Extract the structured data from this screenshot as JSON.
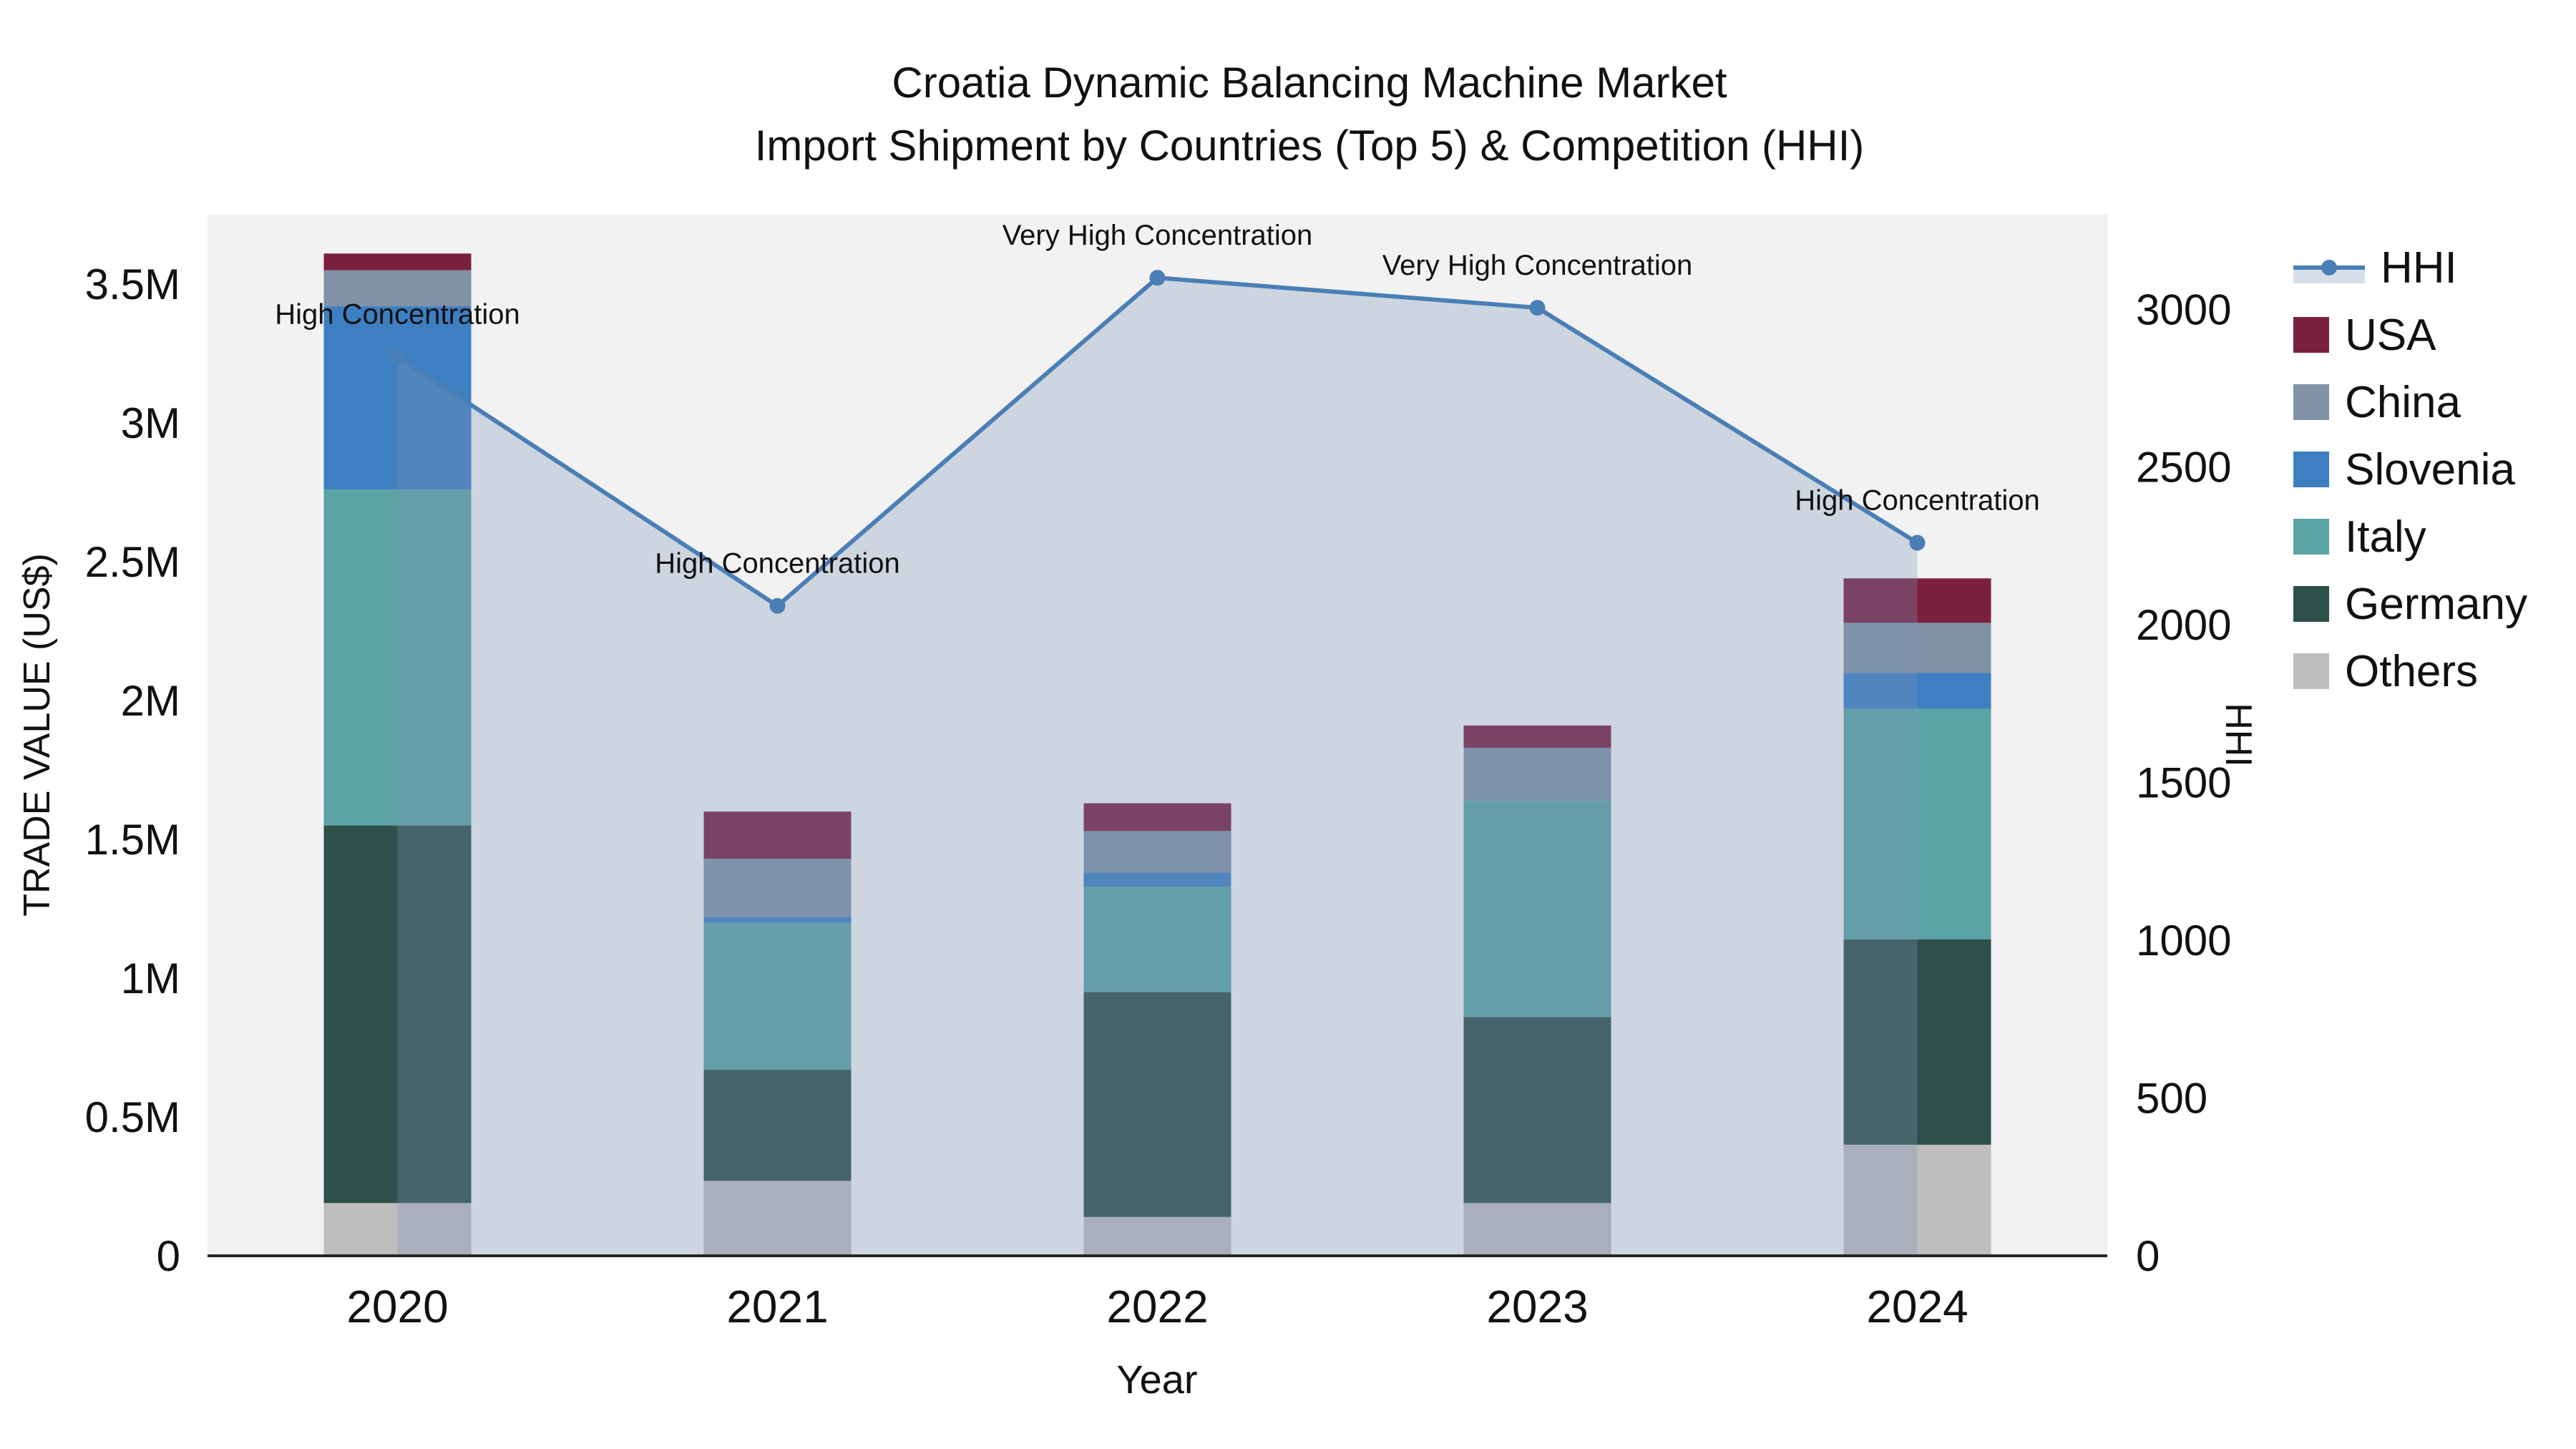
{
  "title": {
    "line1": "Croatia Dynamic Balancing Machine Market",
    "line2": "Import Shipment by Countries (Top 5) & Competition (HHI)"
  },
  "axis_labels": {
    "y_left": "TRADE VALUE (US$)",
    "y_right": "HHI",
    "x": "Year"
  },
  "legend": {
    "position": "right",
    "items": [
      {
        "label": "HHI",
        "type": "line",
        "color": "#4a7fb5"
      },
      {
        "label": "USA",
        "type": "swatch",
        "color": "#7b1f3e"
      },
      {
        "label": "China",
        "type": "swatch",
        "color": "#8192a6"
      },
      {
        "label": "Slovenia",
        "type": "swatch",
        "color": "#3d7fc1"
      },
      {
        "label": "Italy",
        "type": "swatch",
        "color": "#5ba3a4"
      },
      {
        "label": "Germany",
        "type": "swatch",
        "color": "#2e4f4a"
      },
      {
        "label": "Others",
        "type": "swatch",
        "color": "#bfbdbd"
      }
    ]
  },
  "chart_data": {
    "type": "bar",
    "subtype": "stacked-bars-with-hhi-line",
    "title": "Croatia Dynamic Balancing Machine Market Import Shipment by Countries (Top 5) & Competition (HHI)",
    "xlabel": "Year",
    "categories": [
      "2020",
      "2021",
      "2022",
      "2023",
      "2024"
    ],
    "bar_series": [
      {
        "name": "Others",
        "color": "#bfbdbd",
        "values": [
          190000,
          270000,
          140000,
          190000,
          400000
        ]
      },
      {
        "name": "Germany",
        "color": "#2e4f4a",
        "values": [
          1360000,
          400000,
          810000,
          670000,
          740000
        ]
      },
      {
        "name": "Italy",
        "color": "#5ba3a4",
        "values": [
          1210000,
          530000,
          380000,
          780000,
          830000
        ]
      },
      {
        "name": "Slovenia",
        "color": "#3d7fc1",
        "values": [
          660000,
          20000,
          50000,
          0,
          130000
        ]
      },
      {
        "name": "China",
        "color": "#8192a6",
        "values": [
          130000,
          210000,
          150000,
          190000,
          180000
        ]
      },
      {
        "name": "USA",
        "color": "#7b1f3e",
        "values": [
          60000,
          170000,
          100000,
          80000,
          160000
        ]
      }
    ],
    "bar_totals": [
      3610000,
      1600000,
      1630000,
      1910000,
      2440000
    ],
    "line_series": {
      "name": "HHI",
      "color": "#4a7fb5",
      "area_fill": "rgba(124,147,184,0.31)",
      "values": [
        2850,
        2060,
        3100,
        3005,
        2260
      ]
    },
    "annotations": [
      {
        "x": "2020",
        "text": "High Concentration"
      },
      {
        "x": "2021",
        "text": "High Concentration"
      },
      {
        "x": "2022",
        "text": "Very High Concentration"
      },
      {
        "x": "2023",
        "text": "Very High Concentration"
      },
      {
        "x": "2024",
        "text": "High Concentration"
      }
    ],
    "y_left": {
      "label": "TRADE VALUE (US$)",
      "ticks": [
        0,
        500000,
        1000000,
        1500000,
        2000000,
        2500000,
        3000000,
        3500000
      ],
      "tick_labels": [
        "0",
        "0.5M",
        "1M",
        "1.5M",
        "2M",
        "2.5M",
        "3M",
        "3.5M"
      ],
      "max": 3750000
    },
    "y_right": {
      "label": "HHI",
      "ticks": [
        0,
        500,
        1000,
        1500,
        2000,
        2500,
        3000
      ],
      "tick_labels": [
        "0",
        "500",
        "1000",
        "1500",
        "2000",
        "2500",
        "3000"
      ],
      "max": 3300
    },
    "plot_bg": "#f2f2f2",
    "grid": false,
    "legend_position": "right"
  }
}
